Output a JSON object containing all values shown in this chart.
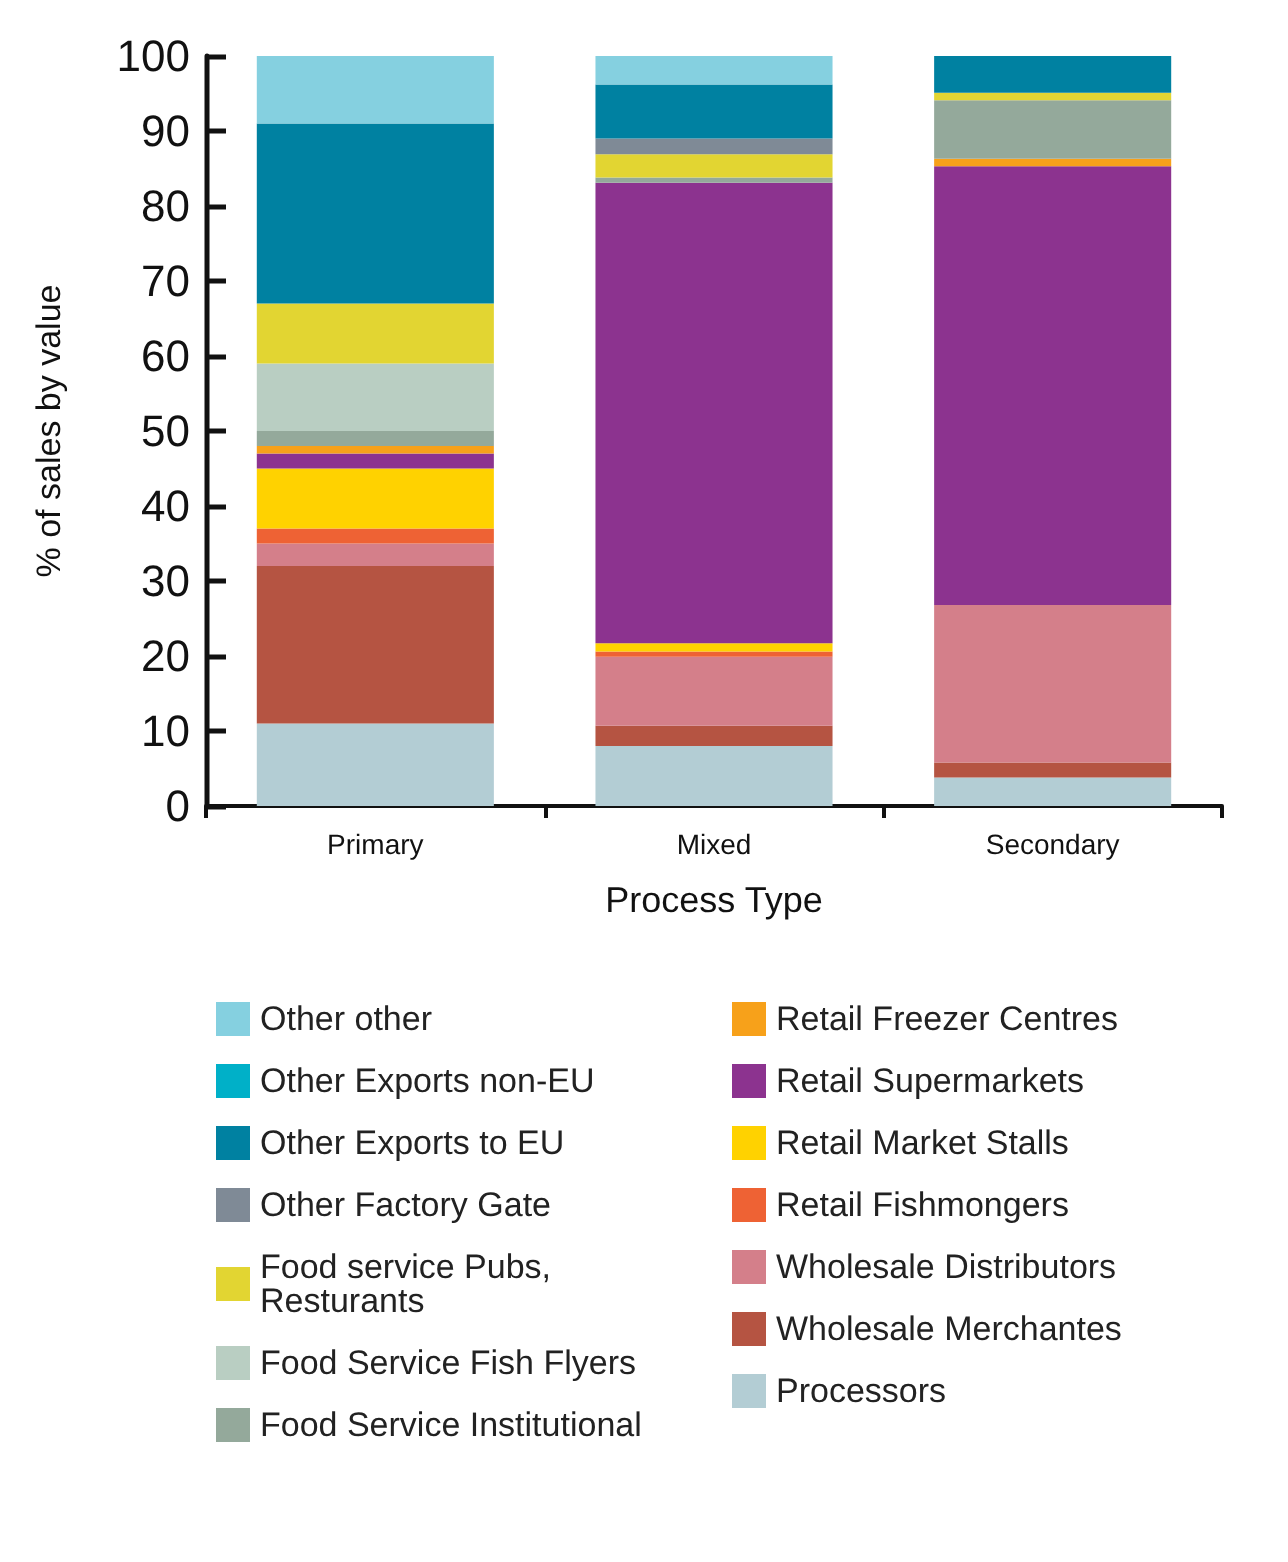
{
  "chart_data": {
    "type": "bar",
    "stacked": true,
    "xlabel": "Process Type",
    "ylabel": "% of sales by value",
    "categories": [
      "Primary",
      "Mixed",
      "Secondary"
    ],
    "ylim": [
      0,
      100
    ],
    "yticks": [
      0,
      10,
      20,
      30,
      40,
      50,
      60,
      70,
      80,
      90,
      100
    ],
    "grid": false,
    "legend": "bottom",
    "series": [
      {
        "name": "Processors",
        "color": "#b3cdd4",
        "values": [
          11,
          8,
          3.8
        ]
      },
      {
        "name": "Wholesale Merchantes",
        "color": "#b55442",
        "values": [
          21,
          2.7,
          2
        ]
      },
      {
        "name": "Wholesale Distributors",
        "color": "#d47f8a",
        "values": [
          3,
          9.2,
          21
        ]
      },
      {
        "name": "Retail Fishmongers",
        "color": "#ee6234",
        "values": [
          2,
          0.7,
          0
        ]
      },
      {
        "name": "Retail Market Stalls",
        "color": "#ffd200",
        "values": [
          8,
          1.1,
          0
        ]
      },
      {
        "name": "Retail Supermarkets",
        "color": "#8c338f",
        "values": [
          2,
          61.4,
          58.5
        ]
      },
      {
        "name": "Retail Freezer Centres",
        "color": "#f7a11a",
        "values": [
          1,
          0,
          1
        ]
      },
      {
        "name": "Food Service Institutional",
        "color": "#94a99b",
        "values": [
          2,
          0.7,
          7.8
        ]
      },
      {
        "name": "Food Service Fish Flyers",
        "color": "#b9cec2",
        "values": [
          9,
          0,
          0
        ]
      },
      {
        "name": "Food service Pubs, Resturants",
        "color": "#e2d532",
        "values": [
          8,
          3.1,
          1
        ]
      },
      {
        "name": "Other Factory Gate",
        "color": "#7f8a96",
        "values": [
          0,
          2.1,
          0
        ]
      },
      {
        "name": "Other Exports to EU",
        "color": "#0081a1",
        "values": [
          24,
          7.2,
          4.9
        ]
      },
      {
        "name": "Other Exports non-EU",
        "color": "#00b0c8",
        "values": [
          0,
          0,
          0
        ]
      },
      {
        "name": "Other other",
        "color": "#85d0e0",
        "values": [
          9,
          3.8,
          0
        ]
      }
    ]
  }
}
